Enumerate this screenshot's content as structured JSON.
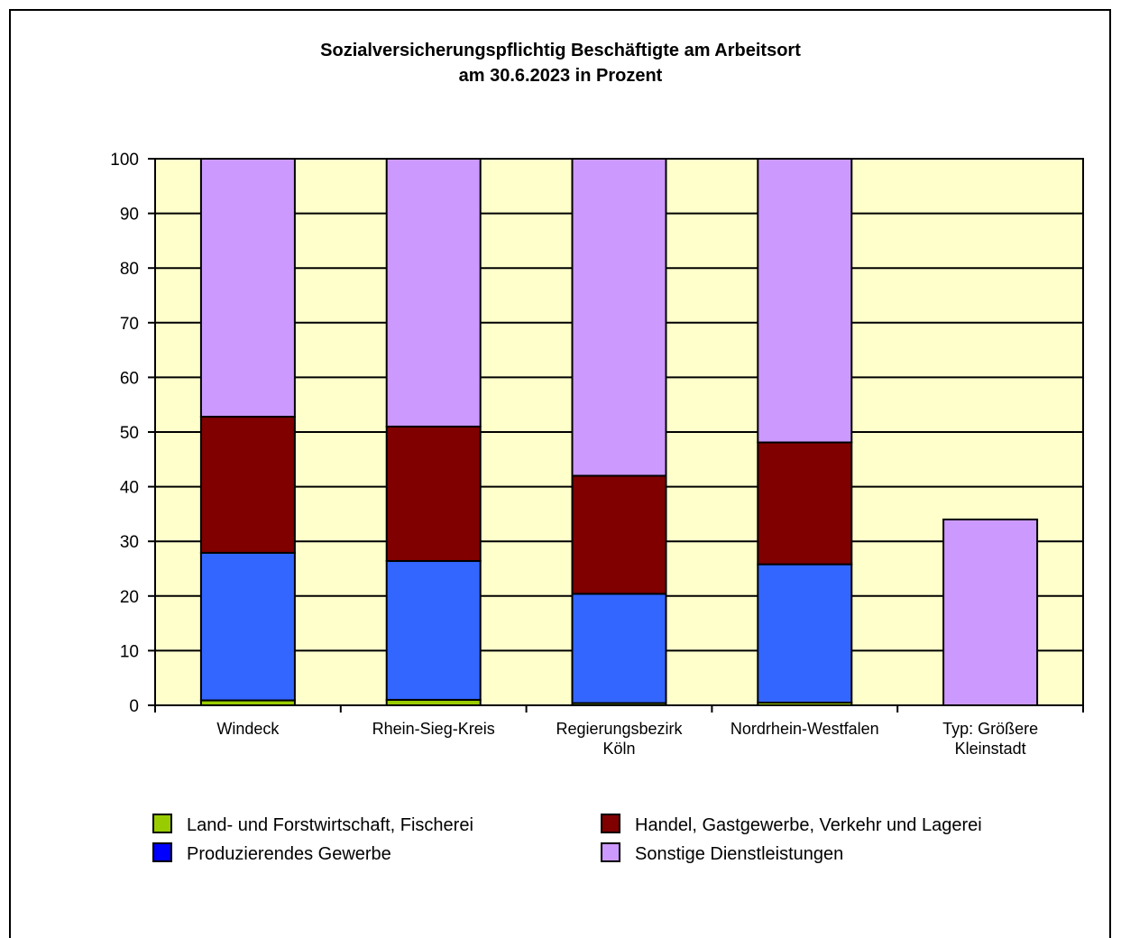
{
  "chart_data": {
    "type": "bar",
    "stacked": true,
    "title": "Sozialversicherungspflichtig Beschäftigte am Arbeitsort",
    "subtitle": "am 30.6.2023 in Prozent",
    "xlabel": "",
    "ylabel": "",
    "ylim": [
      0,
      100
    ],
    "yticks": [
      0,
      10,
      20,
      30,
      40,
      50,
      60,
      70,
      80,
      90,
      100
    ],
    "grid": true,
    "legend_position": "bottom",
    "categories": [
      [
        "Windeck"
      ],
      [
        "Rhein-Sieg-Kreis"
      ],
      [
        "Regierungsbezirk",
        "Köln"
      ],
      [
        "Nordrhein-Westfalen"
      ],
      [
        "Typ: Größere",
        "Kleinstadt"
      ]
    ],
    "series": [
      {
        "name": "Land- und Forstwirtschaft, Fischerei",
        "color": "#99cc00",
        "values": [
          0.9,
          1.0,
          0.4,
          0.5,
          0
        ]
      },
      {
        "name": "Produzierendes Gewerbe",
        "color": "#3366ff",
        "legend_color": "#0000ff",
        "values": [
          27.0,
          25.4,
          20.0,
          25.3,
          0
        ]
      },
      {
        "name": "Handel, Gastgewerbe, Verkehr und Lagerei",
        "color": "#800000",
        "values": [
          24.9,
          24.6,
          21.6,
          22.3,
          0
        ]
      },
      {
        "name": "Sonstige Dienstleistungen",
        "color": "#cc99ff",
        "values": [
          47.2,
          49.0,
          58.0,
          51.9,
          34.0
        ]
      }
    ],
    "plot_background": "#ffffcc"
  }
}
